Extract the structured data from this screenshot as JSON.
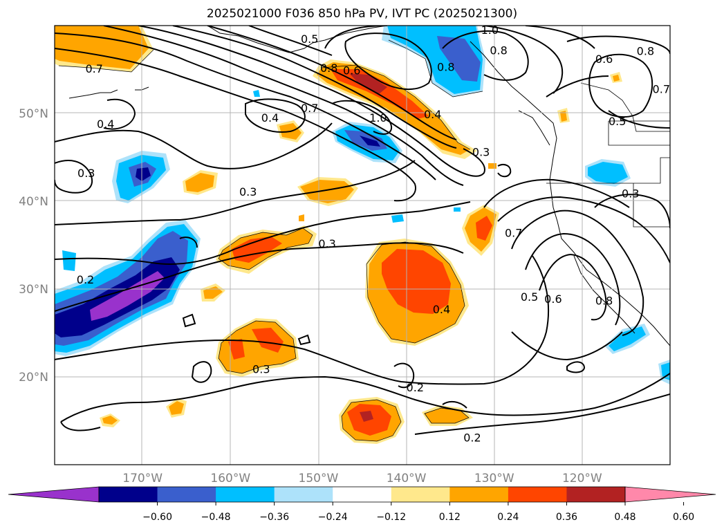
{
  "title": "2025021000 F036 850 hPa PV, IVT PC (2025021300)",
  "map": {
    "lon_range": [
      -180,
      -110
    ],
    "lat_range": [
      10,
      60
    ],
    "gridlines": true,
    "lat_ticks": [
      {
        "value": 50,
        "label": "50°N"
      },
      {
        "value": 40,
        "label": "40°N"
      },
      {
        "value": 30,
        "label": "30°N"
      },
      {
        "value": 20,
        "label": "20°N"
      }
    ],
    "lon_ticks": [
      {
        "value": -170,
        "label": "170°W"
      },
      {
        "value": -160,
        "label": "160°W"
      },
      {
        "value": -150,
        "label": "150°W"
      },
      {
        "value": -140,
        "label": "140°W"
      },
      {
        "value": -130,
        "label": "130°W"
      },
      {
        "value": -120,
        "label": "120°W"
      }
    ],
    "contour_labels": [
      {
        "lon": -151,
        "lat": 58.2,
        "text": "0.5"
      },
      {
        "lon": -175.5,
        "lat": 54.8,
        "text": "0.7"
      },
      {
        "lon": -148.8,
        "lat": 54.9,
        "text": "0.8"
      },
      {
        "lon": -146.2,
        "lat": 54.6,
        "text": "0.6"
      },
      {
        "lon": -130.5,
        "lat": 59.2,
        "text": "1.0"
      },
      {
        "lon": -129.5,
        "lat": 56.9,
        "text": "0.8"
      },
      {
        "lon": -135.5,
        "lat": 55.0,
        "text": "0.8"
      },
      {
        "lon": -117.5,
        "lat": 55.9,
        "text": "0.6"
      },
      {
        "lon": -112.8,
        "lat": 56.8,
        "text": "0.8"
      },
      {
        "lon": -111.0,
        "lat": 52.5,
        "text": "0.7"
      },
      {
        "lon": -116.0,
        "lat": 48.8,
        "text": "0.5"
      },
      {
        "lon": -174.2,
        "lat": 48.5,
        "text": "0.4"
      },
      {
        "lon": -155.5,
        "lat": 49.2,
        "text": "0.4"
      },
      {
        "lon": -151.0,
        "lat": 50.3,
        "text": "0.7"
      },
      {
        "lon": -143.2,
        "lat": 49.2,
        "text": "1.0"
      },
      {
        "lon": -137.0,
        "lat": 49.6,
        "text": "0.4"
      },
      {
        "lon": -131.5,
        "lat": 45.3,
        "text": "0.3"
      },
      {
        "lon": -176.4,
        "lat": 42.9,
        "text": "0.3"
      },
      {
        "lon": -158.0,
        "lat": 40.8,
        "text": "0.3"
      },
      {
        "lon": -114.5,
        "lat": 40.6,
        "text": "0.3"
      },
      {
        "lon": -127.8,
        "lat": 36.1,
        "text": "0.7"
      },
      {
        "lon": -149.0,
        "lat": 34.9,
        "text": "0.3"
      },
      {
        "lon": -176.5,
        "lat": 30.8,
        "text": "0.2"
      },
      {
        "lon": -126.0,
        "lat": 28.8,
        "text": "0.5"
      },
      {
        "lon": -123.3,
        "lat": 28.6,
        "text": "0.6"
      },
      {
        "lon": -117.5,
        "lat": 28.4,
        "text": "0.8"
      },
      {
        "lon": -136.0,
        "lat": 27.4,
        "text": "0.4"
      },
      {
        "lon": -156.5,
        "lat": 20.6,
        "text": "0.3"
      },
      {
        "lon": -139.0,
        "lat": 18.5,
        "text": "0.2"
      },
      {
        "lon": -132.5,
        "lat": 12.8,
        "text": "0.2"
      }
    ]
  },
  "colorbar": {
    "colors": [
      "#9932cc",
      "#00008b",
      "#3a5fcd",
      "#00bfff",
      "#ade2fa",
      "#ffffff",
      "#ffe88c",
      "#ffa500",
      "#ff4500",
      "#b22222",
      "#ff88aa"
    ],
    "ticks": [
      "−0.60",
      "−0.48",
      "−0.36",
      "−0.24",
      "−0.12",
      "0.12",
      "0.24",
      "0.36",
      "0.48",
      "0.60"
    ]
  }
}
